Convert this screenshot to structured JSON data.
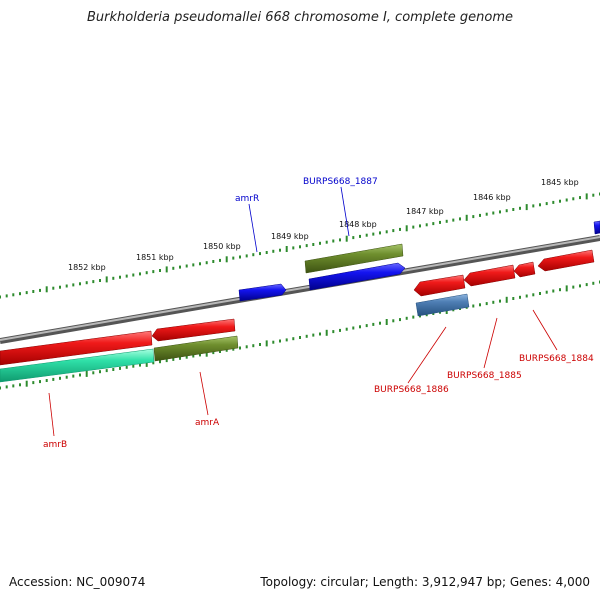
{
  "title": "Burkholderia pseudomallei 668 chromosome I, complete genome",
  "footer": {
    "accession": "Accession: NC_009074",
    "summary": "Topology: circular; Length: 3,912,947 bp; Genes: 4,000"
  },
  "colors": {
    "background": "#ffffff",
    "backbone": "#808080",
    "tick": "#2e8b2e",
    "cds_red": "#e8141a",
    "cds_blue": "#1414e0",
    "cds_olive": "#6f8f2e",
    "cds_steel": "#4f7fb5",
    "cds_teal": "#2fe0a8",
    "label_red": "#cc0000",
    "label_blue": "#0000cc"
  },
  "kbp_labels": [
    "1845 kbp",
    "1846 kbp",
    "1847 kbp",
    "1848 kbp",
    "1849 kbp",
    "1850 kbp",
    "1851 kbp",
    "1852 kbp"
  ],
  "gene_labels": {
    "amrR": "amrR",
    "burps1887": "BURPS668_1887",
    "burps1886": "BURPS668_1886",
    "burps1885": "BURPS668_1885",
    "burps1884": "BURPS668_1884",
    "amrA": "amrA",
    "amrB": "amrB"
  }
}
